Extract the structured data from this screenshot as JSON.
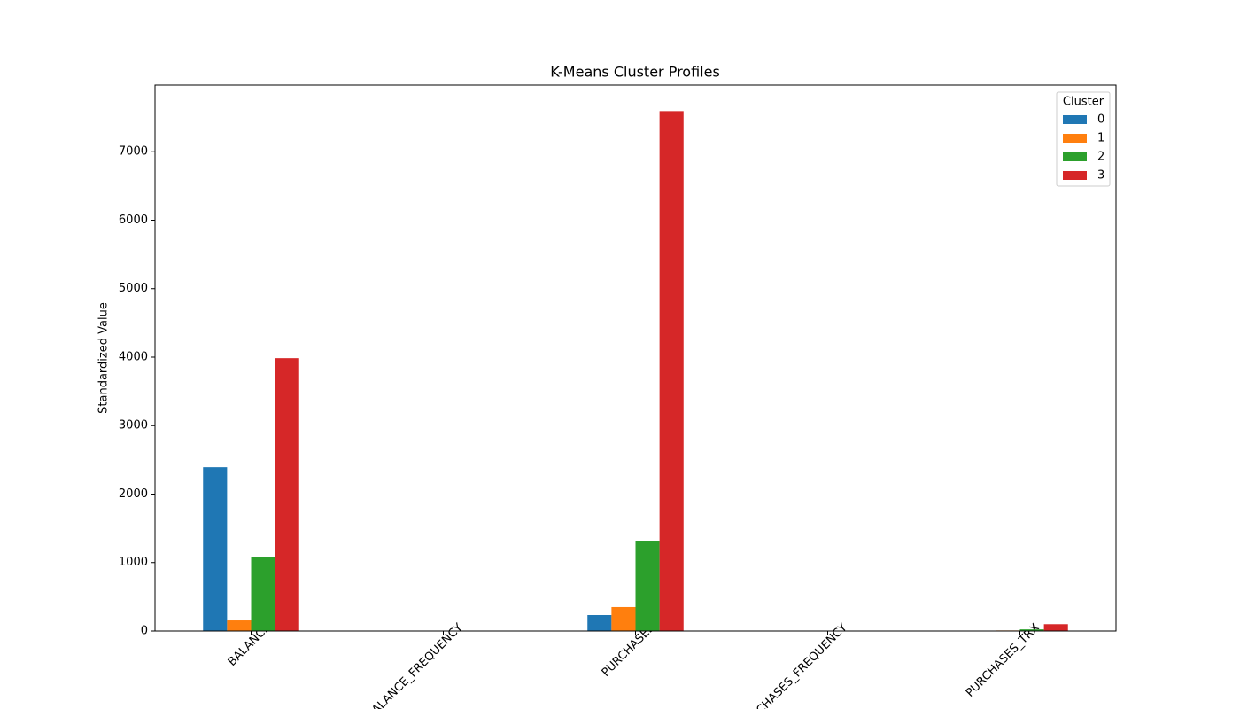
{
  "chart_data": {
    "type": "bar",
    "title": "K-Means Cluster Profiles",
    "y_label": "Standardized Value",
    "categories": [
      "BALANCE",
      "BALANCE_FREQUENCY",
      "PURCHASES",
      "PURCHASES_FREQUENCY",
      "PURCHASES_TRX"
    ],
    "series": [
      {
        "name": "0",
        "color": "#1f77b4",
        "values": [
          2393,
          0.9,
          233,
          0.2,
          3
        ]
      },
      {
        "name": "1",
        "color": "#ff7f0e",
        "values": [
          155,
          0.9,
          350,
          0.5,
          8
        ]
      },
      {
        "name": "2",
        "color": "#2ca02c",
        "values": [
          1087,
          0.95,
          1320,
          0.8,
          24
        ]
      },
      {
        "name": "3",
        "color": "#d62728",
        "values": [
          3985,
          0.98,
          7594,
          0.9,
          100
        ]
      }
    ],
    "ylim": [
      0,
      7974
    ],
    "yticks": [
      0,
      1000,
      2000,
      3000,
      4000,
      5000,
      6000,
      7000
    ],
    "grid": false,
    "legend_title": "Cluster",
    "legend_loc": "upper right"
  }
}
